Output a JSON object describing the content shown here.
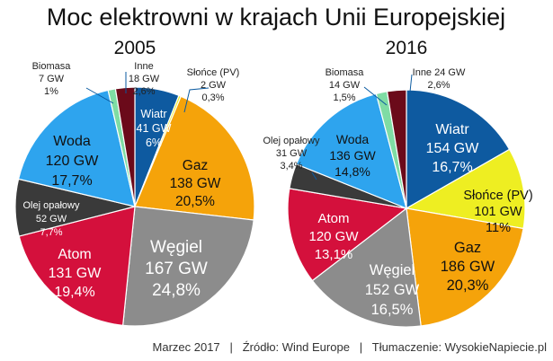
{
  "title": "Moc elektrowni w krajach Unii Europejskiej",
  "footer": "Marzec 2017   |   Źródło: Wind Europe   |   Tłumaczenie: WysokieNapiecie.pl",
  "colors": {
    "Wiatr": "#0e5aa0",
    "Słońce (PV)": "#eeee22",
    "Gaz": "#f5a30a",
    "Węgiel": "#8c8c8c",
    "Atom": "#d4103c",
    "Olej opałowy": "#3a3a3a",
    "Woda": "#2ea4ee",
    "Biomasa": "#7fdca4",
    "Inne": "#6b0a1a"
  },
  "chart_data": [
    {
      "type": "pie",
      "title": "2005",
      "slices": [
        {
          "name": "Wiatr",
          "gw": 41,
          "value": 6,
          "value_label": "41 GW",
          "pct_label": "6%"
        },
        {
          "name": "Słońce (PV)",
          "gw": 2,
          "value": 0.3,
          "value_label": "2 GW",
          "pct_label": "0,3%"
        },
        {
          "name": "Gaz",
          "gw": 138,
          "value": 20.5,
          "value_label": "138 GW",
          "pct_label": "20,5%"
        },
        {
          "name": "Węgiel",
          "gw": 167,
          "value": 24.8,
          "value_label": "167 GW",
          "pct_label": "24,8%"
        },
        {
          "name": "Atom",
          "gw": 131,
          "value": 19.4,
          "value_label": "131 GW",
          "pct_label": "19,4%"
        },
        {
          "name": "Olej opałowy",
          "gw": 52,
          "value": 7.7,
          "value_label": "52 GW",
          "pct_label": "7,7%"
        },
        {
          "name": "Woda",
          "gw": 120,
          "value": 17.7,
          "value_label": "120 GW",
          "pct_label": "17,7%"
        },
        {
          "name": "Biomasa",
          "gw": 7,
          "value": 1,
          "value_label": "7 GW",
          "pct_label": "1%"
        },
        {
          "name": "Inne",
          "gw": 18,
          "value": 2.6,
          "value_label": "18 GW",
          "pct_label": "2,6%"
        }
      ]
    },
    {
      "type": "pie",
      "title": "2016",
      "slices": [
        {
          "name": "Wiatr",
          "gw": 154,
          "value": 16.7,
          "value_label": "154 GW",
          "pct_label": "16,7%"
        },
        {
          "name": "Słońce (PV)",
          "gw": 101,
          "value": 11,
          "value_label": "101 GW",
          "pct_label": "11%"
        },
        {
          "name": "Gaz",
          "gw": 186,
          "value": 20.3,
          "value_label": "186 GW",
          "pct_label": "20,3%"
        },
        {
          "name": "Węgiel",
          "gw": 152,
          "value": 16.5,
          "value_label": "152 GW",
          "pct_label": "16,5%"
        },
        {
          "name": "Atom",
          "gw": 120,
          "value": 13.1,
          "value_label": "120 GW",
          "pct_label": "13,1%"
        },
        {
          "name": "Olej opałowy",
          "gw": 31,
          "value": 3.4,
          "value_label": "31 GW",
          "pct_label": "3,4%"
        },
        {
          "name": "Woda",
          "gw": 136,
          "value": 14.8,
          "value_label": "136 GW",
          "pct_label": "14,8%"
        },
        {
          "name": "Biomasa",
          "gw": 14,
          "value": 1.5,
          "value_label": "14 GW",
          "pct_label": "1,5%"
        },
        {
          "name": "Inne",
          "gw": 24,
          "value": 2.6,
          "value_label": "Inne 24 GW",
          "pct_label": "2,6%"
        }
      ]
    }
  ]
}
